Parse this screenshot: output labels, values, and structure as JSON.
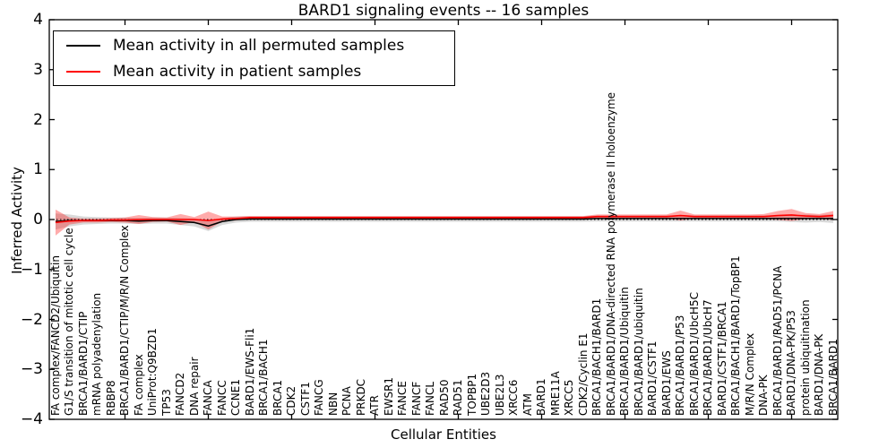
{
  "title": "BARD1 signaling events -- 16 samples",
  "axes": {
    "ylabel": "Inferred Activity",
    "xlabel": "Cellular Entities",
    "ylim": [
      -4,
      4
    ],
    "yticks": [
      "4",
      "3",
      "2",
      "1",
      "0",
      "−1",
      "−2",
      "−3",
      "−4"
    ],
    "ytick_values": [
      4,
      3,
      2,
      1,
      0,
      -1,
      -2,
      -3,
      -4
    ]
  },
  "legend": {
    "entries": [
      {
        "label": "Mean activity in all permuted samples",
        "color": "#000000"
      },
      {
        "label": "Mean activity in patient samples",
        "color": "#ff0000"
      }
    ]
  },
  "colors": {
    "permuted_line": "#000000",
    "patient_line": "#ff0000",
    "permuted_band": "rgba(0,0,0,0.15)",
    "patient_band": "rgba(255,0,0,0.33)",
    "zero_line": "#000000",
    "spine": "#000000"
  },
  "chart_data": {
    "type": "line",
    "title": "BARD1 signaling events -- 16 samples",
    "xlabel": "Cellular Entities",
    "ylabel": "Inferred Activity",
    "ylim": [
      -4,
      4
    ],
    "grid": false,
    "legend_position": "upper left",
    "zero_line_dotted": true,
    "categories": [
      "FA complex/FANCD2/Ubiquitin",
      "G1/S transition of mitotic cell cycle",
      "BRCA1/BARD1/CTIP",
      "mRNA polyadenylation",
      "RBBP8",
      "BRCA1/BARD1/CTIP/M/R/N Complex",
      "FA complex",
      "UniProt:Q9BZD1",
      "TP53",
      "FANCD2",
      "DNA repair",
      "FANCA",
      "FANCC",
      "CCNE1",
      "BARD1/EWS-Fli1",
      "BRCA1/BACH1",
      "BRCA1",
      "CDK2",
      "CSTF1",
      "FANCG",
      "NBN",
      "PCNA",
      "PRKDC",
      "ATR",
      "EWSR1",
      "FANCE",
      "FANCF",
      "FANCL",
      "RAD50",
      "RAD51",
      "TOPBP1",
      "UBE2D3",
      "UBE2L3",
      "XRCC6",
      "ATM",
      "BARD1",
      "MRE11A",
      "XRCC5",
      "CDK2/Cyclin E1",
      "BRCA1/BACH1/BARD1",
      "BRCA1/BARD1/DNA-directed RNA polymerase II holoenzyme",
      "BRCA1/BARD1/Ubiquitin",
      "BRCA1/BARD1/ubiquitin",
      "BARD1/CSTF1",
      "BARD1/EWS",
      "BRCA1/BARD1/P53",
      "BRCA1/BARD1/UbcH5C",
      "BRCA1/BARD1/UbcH7",
      "BARD1/CSTF1/BRCA1",
      "BRCA1/BACH1/BARD1/TopBP1",
      "M/R/N Complex",
      "DNA-PK",
      "BRCA1/BARD1/RAD51/PCNA",
      "BARD1/DNA-PK/P53",
      "protein ubiquitination",
      "BARD1/DNA-PK",
      "BRCA1/BARD1"
    ],
    "series": [
      {
        "name": "Mean activity in all permuted samples",
        "color": "#000000",
        "values": [
          -0.04,
          -0.02,
          -0.02,
          -0.02,
          -0.02,
          -0.02,
          -0.03,
          -0.02,
          -0.02,
          -0.04,
          -0.06,
          -0.13,
          -0.04,
          0,
          0.01,
          0.01,
          0.01,
          0.01,
          0.01,
          0.01,
          0.01,
          0.01,
          0.01,
          0.01,
          0.01,
          0.01,
          0.01,
          0.01,
          0.01,
          0.01,
          0.01,
          0.01,
          0.01,
          0.01,
          0.01,
          0.01,
          0.01,
          0.01,
          0.01,
          0.02,
          0.02,
          0.02,
          0.02,
          0.02,
          0.02,
          0.02,
          0.02,
          0.02,
          0.02,
          0.02,
          0.02,
          0.02,
          0.02,
          0.02,
          0.02,
          0.02,
          0.02
        ],
        "band_halfwidth": [
          0.16,
          0.12,
          0.08,
          0.07,
          0.06,
          0.06,
          0.06,
          0.06,
          0.06,
          0.07,
          0.08,
          0.1,
          0.07,
          0.06,
          0.055,
          0.055,
          0.055,
          0.055,
          0.055,
          0.055,
          0.055,
          0.055,
          0.055,
          0.055,
          0.055,
          0.055,
          0.055,
          0.055,
          0.055,
          0.055,
          0.055,
          0.055,
          0.055,
          0.055,
          0.055,
          0.055,
          0.055,
          0.055,
          0.055,
          0.06,
          0.06,
          0.06,
          0.06,
          0.06,
          0.06,
          0.06,
          0.06,
          0.06,
          0.06,
          0.06,
          0.06,
          0.06,
          0.06,
          0.07,
          0.08,
          0.07,
          0.09
        ]
      },
      {
        "name": "Mean activity in patient samples",
        "color": "#ff0000",
        "values": [
          -0.06,
          -0.03,
          -0.02,
          -0.02,
          -0.01,
          -0.01,
          0,
          0,
          0,
          0,
          0,
          -0.02,
          0.01,
          0.02,
          0.04,
          0.04,
          0.04,
          0.04,
          0.04,
          0.04,
          0.04,
          0.04,
          0.04,
          0.04,
          0.04,
          0.04,
          0.04,
          0.04,
          0.04,
          0.04,
          0.04,
          0.04,
          0.04,
          0.04,
          0.04,
          0.04,
          0.04,
          0.04,
          0.04,
          0.06,
          0.06,
          0.06,
          0.06,
          0.06,
          0.06,
          0.08,
          0.06,
          0.06,
          0.06,
          0.06,
          0.06,
          0.06,
          0.08,
          0.09,
          0.07,
          0.06,
          0.08
        ],
        "band_halfwidth": [
          0.26,
          0.07,
          0.04,
          0.04,
          0.04,
          0.05,
          0.09,
          0.05,
          0.04,
          0.11,
          0.05,
          0.18,
          0.05,
          0.04,
          0.03,
          0.03,
          0.03,
          0.03,
          0.03,
          0.03,
          0.03,
          0.03,
          0.03,
          0.03,
          0.03,
          0.03,
          0.03,
          0.03,
          0.03,
          0.03,
          0.03,
          0.03,
          0.03,
          0.03,
          0.03,
          0.03,
          0.03,
          0.03,
          0.03,
          0.04,
          0.04,
          0.04,
          0.04,
          0.04,
          0.04,
          0.1,
          0.04,
          0.04,
          0.04,
          0.04,
          0.04,
          0.05,
          0.09,
          0.12,
          0.06,
          0.05,
          0.09
        ]
      }
    ],
    "top_tick_category_indices": [
      5,
      11,
      17,
      23,
      29,
      35,
      41,
      47,
      53
    ]
  }
}
